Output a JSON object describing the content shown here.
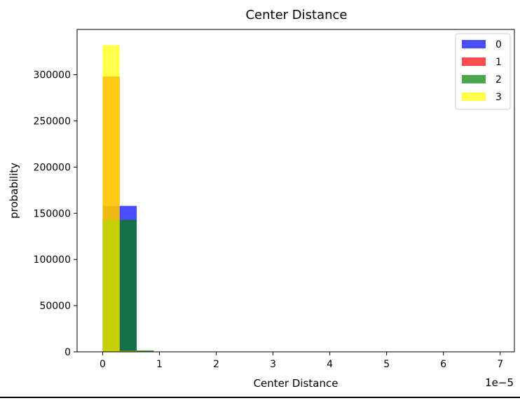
{
  "chart_data": {
    "type": "bar",
    "title": "Center Distance",
    "xlabel": "Center Distance",
    "ylabel": "probability",
    "x_offset_label": "1e−5",
    "xlim": [
      -0.45,
      7.25
    ],
    "ylim": [
      0,
      349000
    ],
    "x_ticks": [
      0,
      1,
      2,
      3,
      4,
      5,
      6,
      7
    ],
    "y_ticks": [
      0,
      50000,
      100000,
      150000,
      200000,
      250000,
      300000
    ],
    "legend_position": "top-right",
    "series": [
      {
        "name": "0",
        "color": "#0000ff",
        "opacity": 0.7,
        "bins": [
          {
            "x0": 0.0,
            "x1": 0.3,
            "value": 158000
          },
          {
            "x0": 0.3,
            "x1": 0.6,
            "value": 158000
          },
          {
            "x0": 0.6,
            "x1": 0.9,
            "value": 800
          }
        ]
      },
      {
        "name": "1",
        "color": "#ff0000",
        "opacity": 0.7,
        "bins": [
          {
            "x0": 0.0,
            "x1": 0.3,
            "value": 298000
          },
          {
            "x0": 0.3,
            "x1": 0.6,
            "value": 1500
          }
        ]
      },
      {
        "name": "2",
        "color": "#008000",
        "opacity": 0.7,
        "bins": [
          {
            "x0": 0.0,
            "x1": 0.3,
            "value": 143000
          },
          {
            "x0": 0.3,
            "x1": 0.6,
            "value": 143000
          },
          {
            "x0": 0.6,
            "x1": 0.9,
            "value": 1500
          }
        ]
      },
      {
        "name": "3",
        "color": "#ffff00",
        "opacity": 0.7,
        "bins": [
          {
            "x0": 0.0,
            "x1": 0.3,
            "value": 332000
          },
          {
            "x0": 0.3,
            "x1": 0.6,
            "value": 1000
          },
          {
            "x0": 0.6,
            "x1": 0.9,
            "value": 500
          }
        ]
      }
    ]
  }
}
